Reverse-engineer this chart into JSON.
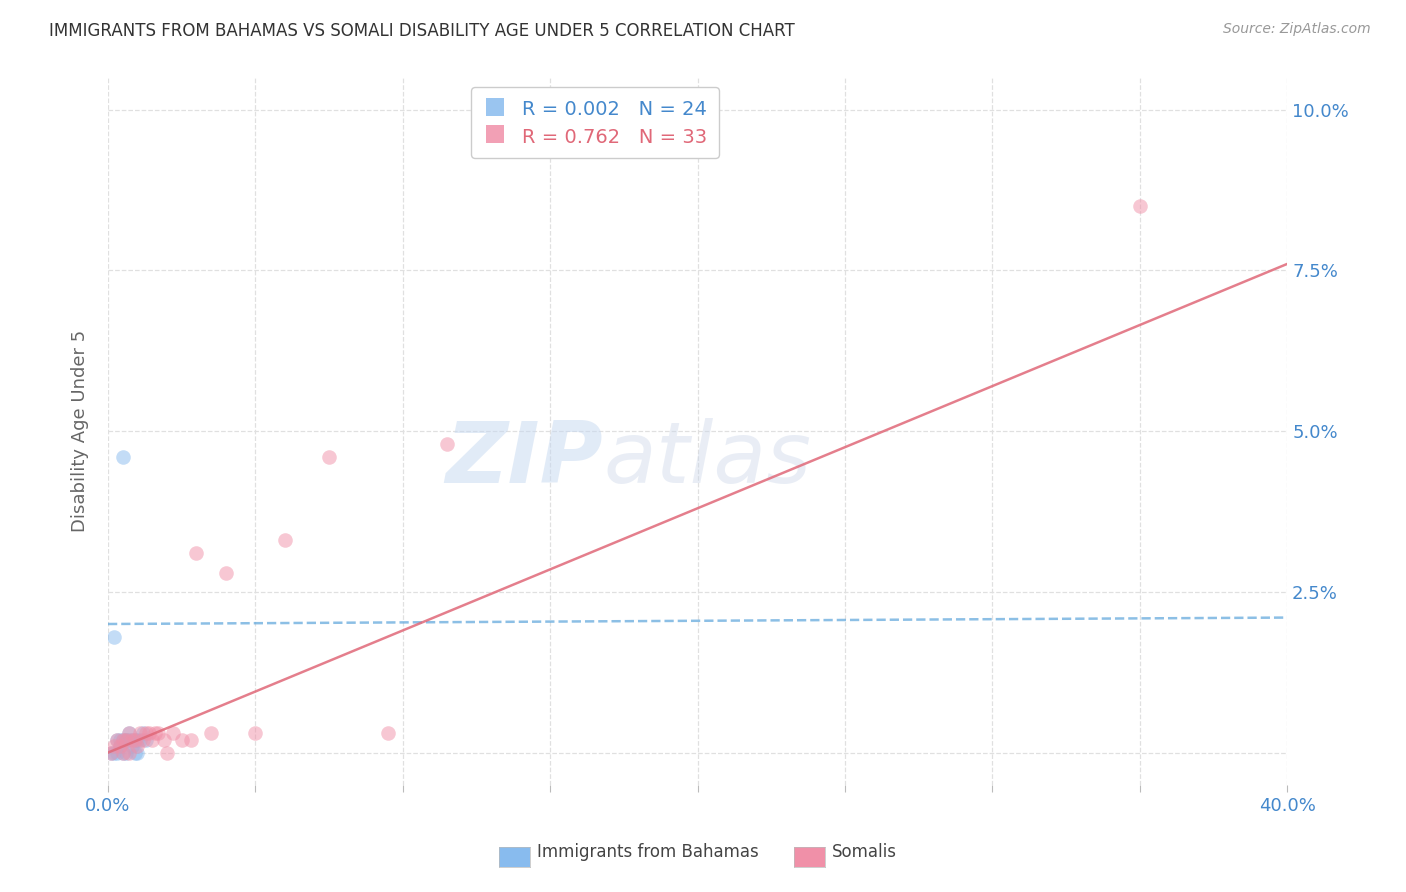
{
  "title": "IMMIGRANTS FROM BAHAMAS VS SOMALI DISABILITY AGE UNDER 5 CORRELATION CHART",
  "source": "Source: ZipAtlas.com",
  "ylabel": "Disability Age Under 5",
  "xlim": [
    0.0,
    0.4
  ],
  "ylim": [
    -0.005,
    0.105
  ],
  "yticks": [
    0.0,
    0.025,
    0.05,
    0.075,
    0.1
  ],
  "ytick_labels": [
    "",
    "2.5%",
    "5.0%",
    "7.5%",
    "10.0%"
  ],
  "xticks": [
    0.0,
    0.05,
    0.1,
    0.15,
    0.2,
    0.25,
    0.3,
    0.35,
    0.4
  ],
  "xtick_labels": [
    "0.0%",
    "",
    "",
    "",
    "",
    "",
    "",
    "",
    "40.0%"
  ],
  "bahamas_scatter_x": [
    0.001,
    0.002,
    0.002,
    0.003,
    0.003,
    0.004,
    0.004,
    0.005,
    0.005,
    0.005,
    0.006,
    0.006,
    0.006,
    0.007,
    0.007,
    0.008,
    0.008,
    0.009,
    0.009,
    0.01,
    0.01,
    0.011,
    0.012,
    0.013
  ],
  "bahamas_scatter_y": [
    0.0,
    0.0,
    0.018,
    0.002,
    0.0,
    0.002,
    0.001,
    0.046,
    0.002,
    0.0,
    0.002,
    0.002,
    0.0,
    0.003,
    0.002,
    0.002,
    0.001,
    0.002,
    0.0,
    0.002,
    0.0,
    0.002,
    0.003,
    0.002
  ],
  "somali_scatter_x": [
    0.001,
    0.002,
    0.003,
    0.004,
    0.005,
    0.005,
    0.006,
    0.007,
    0.007,
    0.008,
    0.009,
    0.01,
    0.011,
    0.012,
    0.013,
    0.014,
    0.015,
    0.016,
    0.017,
    0.019,
    0.02,
    0.022,
    0.025,
    0.028,
    0.03,
    0.035,
    0.04,
    0.05,
    0.06,
    0.075,
    0.095,
    0.115,
    0.35
  ],
  "somali_scatter_y": [
    0.0,
    0.001,
    0.002,
    0.001,
    0.002,
    0.0,
    0.002,
    0.003,
    0.0,
    0.002,
    0.002,
    0.001,
    0.003,
    0.002,
    0.003,
    0.003,
    0.002,
    0.003,
    0.003,
    0.002,
    0.0,
    0.003,
    0.002,
    0.002,
    0.031,
    0.003,
    0.028,
    0.003,
    0.033,
    0.046,
    0.003,
    0.048,
    0.085
  ],
  "bahamas_line_x": [
    0.0,
    0.4
  ],
  "bahamas_line_y": [
    0.02,
    0.021
  ],
  "somali_line_x": [
    0.0,
    0.4
  ],
  "somali_line_y": [
    0.0,
    0.076
  ],
  "scatter_size": 110,
  "scatter_alpha": 0.5,
  "scatter_color_bahamas": "#88bbee",
  "scatter_color_somali": "#f090a8",
  "line_color_bahamas": "#66aadd",
  "line_color_somali": "#e06878",
  "legend_R_bahamas": "0.002",
  "legend_N_bahamas": "24",
  "legend_R_somali": "0.762",
  "legend_N_somali": "33",
  "legend_color_bahamas": "#4488cc",
  "legend_color_somali": "#e06878",
  "title_color": "#333333",
  "axis_tick_color": "#4488cc",
  "source_color": "#999999",
  "background_color": "#ffffff",
  "grid_color": "#e0e0e0",
  "watermark_color": "#d0e4f5",
  "ylabel_color": "#666666"
}
